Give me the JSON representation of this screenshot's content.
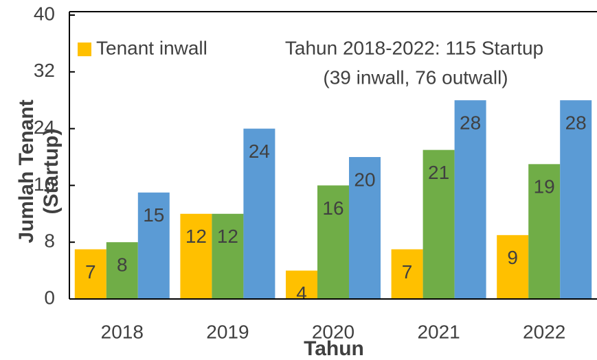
{
  "chart_data": {
    "type": "bar",
    "categories": [
      "2018",
      "2019",
      "2020",
      "2021",
      "2022"
    ],
    "series": [
      {
        "name": "Tenant inwall",
        "color": "#FFC000",
        "values": [
          7,
          12,
          4,
          7,
          9
        ]
      },
      {
        "color": "#70AD47",
        "values": [
          8,
          12,
          16,
          21,
          19
        ]
      },
      {
        "color": "#5B9BD5",
        "values": [
          15,
          24,
          20,
          28,
          28
        ]
      }
    ],
    "ylim": [
      0,
      40
    ],
    "yticks": [
      0,
      8,
      16,
      24,
      32,
      40
    ],
    "y_label": "Jumlah Tenant (Startup)",
    "x_label": "Tahun",
    "annotations": [
      "Tahun 2018-2022: 115 Startup",
      "(39 inwall, 76 outwall)"
    ],
    "value_labels_shown": true
  }
}
